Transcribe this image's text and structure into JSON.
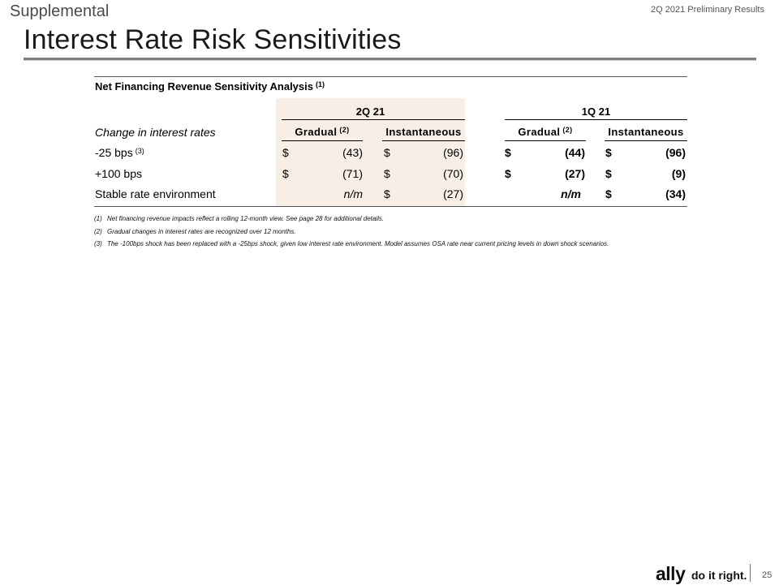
{
  "header": {
    "section": "Supplemental",
    "doc_label": "2Q 2021 Preliminary Results",
    "title": "Interest Rate Risk Sensitivities"
  },
  "table": {
    "title": "Net Financing Revenue Sensitivity Analysis",
    "title_note": "(1)",
    "periods": [
      "2Q 21",
      "1Q 21"
    ],
    "row_header": "Change in interest rates",
    "col_gradual": "Gradual",
    "col_gradual_note": "(2)",
    "col_instant": "Instantaneous",
    "currency": "$",
    "rows": [
      {
        "label": "-25 bps",
        "note": "(3)",
        "q2_grad": "(43)",
        "q2_inst": "(96)",
        "q1_grad": "(44)",
        "q1_inst": "(96)"
      },
      {
        "label": "+100 bps",
        "note": "",
        "q2_grad": "(71)",
        "q2_inst": "(70)",
        "q1_grad": "(27)",
        "q1_inst": "(9)"
      },
      {
        "label": "Stable rate environment",
        "note": "",
        "q2_grad": "n/m",
        "q2_inst": "(27)",
        "q1_grad": "n/m",
        "q1_inst": "(34)"
      }
    ]
  },
  "footnotes": [
    {
      "num": "(1)",
      "text": "Net financing revenue impacts reflect a rolling 12-month view. See page 28 for additional details."
    },
    {
      "num": "(2)",
      "text": "Gradual changes in interest rates are recognized over 12 months."
    },
    {
      "num": "(3)",
      "text": "The -100bps shock has been replaced with a -25bps shock, given low interest rate environment. Model assumes OSA rate near current pricing levels in down shock scenarios."
    }
  ],
  "footer": {
    "brand": "ally",
    "tagline": "do it right.",
    "page_number": "25"
  },
  "colors": {
    "band": "#f7efe6",
    "rule": "#7f7f7f"
  }
}
